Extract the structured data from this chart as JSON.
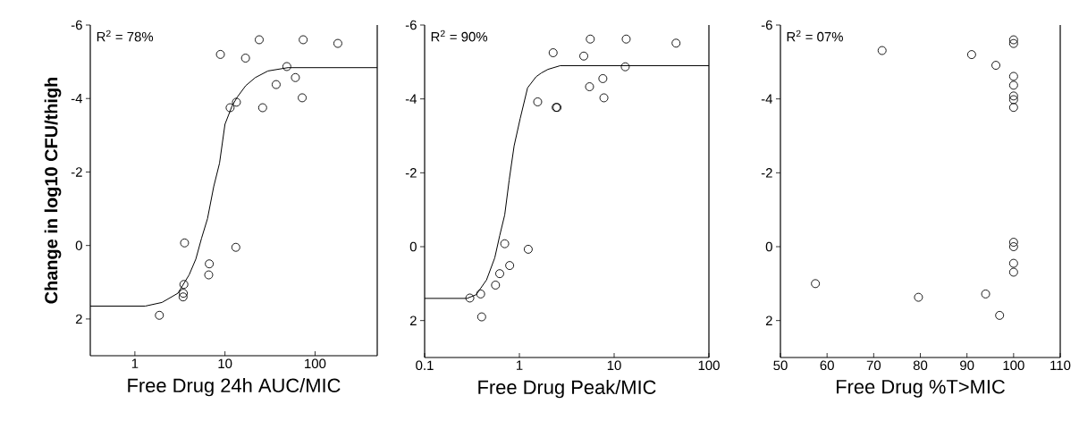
{
  "chart_data": [
    {
      "type": "scatter",
      "xlabel": "Free Drug 24h AUC/MIC",
      "ylabel": "Change in log10 CFU/thigh",
      "annotations": [
        "R$^{2}$ = 78%"
      ],
      "log": "x",
      "marker": "circle",
      "xlim": [
        0.32,
        490
      ],
      "ylim": [
        3,
        -6
      ],
      "xticks": [
        1,
        10,
        100
      ],
      "yticks": [
        -6,
        -4,
        -2,
        0,
        2
      ],
      "series": [
        {
          "color": "#000000",
          "x": [
            1.87,
            3.56,
            3.5,
            3.45,
            3.43,
            6.7,
            6.6,
            13.2,
            11.4,
            13.4,
            8.9,
            16.9,
            24,
            26.2,
            37,
            48.6,
            60.5,
            72,
            73.8,
            179
          ],
          "values": [
            1.9,
            -0.07,
            1.06,
            1.3,
            1.4,
            0.5,
            0.8,
            0.05,
            -3.75,
            -3.9,
            -5.2,
            -5.1,
            -5.6,
            -3.75,
            -4.38,
            -4.87,
            -4.57,
            -4.02,
            -5.6,
            -5.5
          ]
        },
        {
          "type": "line",
          "marker": "none",
          "color": "#000000",
          "x": [
            0.32,
            1.3,
            2,
            3,
            4,
            4.75,
            5.5,
            6.4,
            7.5,
            8.7,
            10,
            12,
            13.7,
            17,
            21.7,
            30,
            50,
            490
          ],
          "values": [
            1.65,
            1.65,
            1.55,
            1.3,
            0.8,
            0.37,
            -0.2,
            -0.73,
            -1.6,
            -2.24,
            -3.3,
            -3.8,
            -4.04,
            -4.35,
            -4.57,
            -4.75,
            -4.84,
            -4.84
          ]
        }
      ]
    },
    {
      "type": "scatter",
      "xlabel": "Free Drug Peak/MIC",
      "annotations": [
        "R$^{2}$ = 90%"
      ],
      "log": "x",
      "marker": "circle",
      "xlim": [
        0.1,
        100
      ],
      "ylim": [
        3,
        -6
      ],
      "xticks": [
        0.1,
        1,
        10,
        100
      ],
      "yticks": [
        -6,
        -4,
        -2,
        0,
        2
      ],
      "series": [
        {
          "color": "#000000",
          "x": [
            0.3,
            0.39,
            0.4,
            0.56,
            0.62,
            0.79,
            0.7,
            1.24,
            1.56,
            2.44,
            2.5,
            2.27,
            4.78,
            5.6,
            5.5,
            7.6,
            7.8,
            13.1,
            13.4,
            45
          ],
          "values": [
            1.39,
            1.28,
            1.9,
            1.04,
            0.73,
            0.51,
            -0.08,
            0.07,
            -3.92,
            -3.77,
            -3.77,
            -5.25,
            -5.16,
            -5.62,
            -4.33,
            -4.55,
            -4.03,
            -4.87,
            -5.62,
            -5.51
          ]
        },
        {
          "type": "line",
          "marker": "none",
          "color": "#000000",
          "x": [
            0.1,
            0.28,
            0.35,
            0.45,
            0.55,
            0.62,
            0.7,
            0.78,
            0.88,
            1.02,
            1.22,
            1.5,
            1.7,
            2,
            2.7,
            100
          ],
          "values": [
            1.4,
            1.4,
            1.3,
            0.9,
            0.3,
            -0.3,
            -0.86,
            -1.8,
            -2.73,
            -3.47,
            -4.3,
            -4.6,
            -4.7,
            -4.8,
            -4.9,
            -4.9
          ]
        }
      ]
    },
    {
      "type": "scatter",
      "xlabel": "Free Drug %T>MIC",
      "annotations": [
        "R$^{2}$ = 07%"
      ],
      "marker": "circle",
      "xlim": [
        50,
        110
      ],
      "ylim": [
        3,
        -6
      ],
      "xticks": [
        50,
        60,
        70,
        80,
        90,
        100,
        110
      ],
      "yticks": [
        -6,
        -4,
        -2,
        0,
        2
      ],
      "series": [
        {
          "color": "#000000",
          "x": [
            57.5,
            79.6,
            94.0,
            97.0,
            91.0,
            96.2,
            71.8,
            100,
            100,
            100,
            100,
            100,
            100,
            100,
            100,
            100,
            100,
            100
          ],
          "values": [
            1.0,
            1.37,
            1.28,
            1.86,
            -5.2,
            -4.91,
            -5.31,
            -5.6,
            -5.5,
            -4.61,
            -4.37,
            -4.08,
            -3.98,
            -3.77,
            -0.12,
            0,
            0.45,
            0.69
          ]
        }
      ]
    }
  ]
}
